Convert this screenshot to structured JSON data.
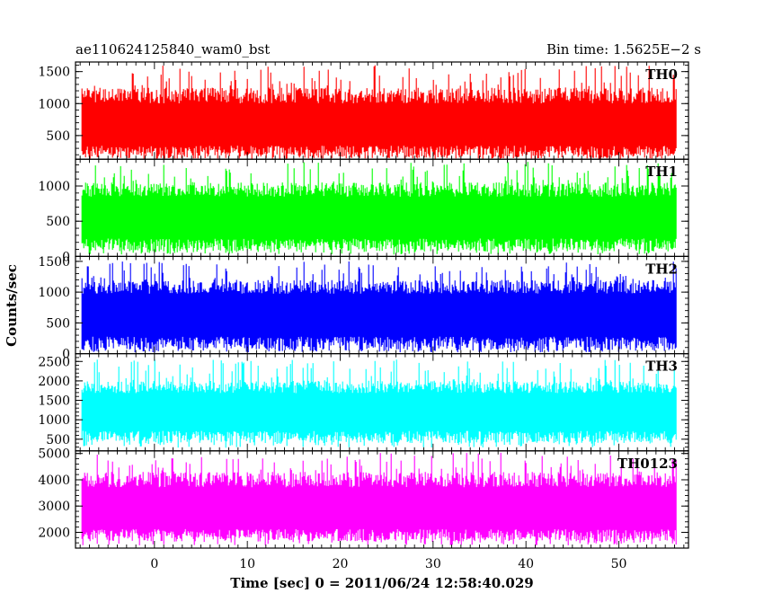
{
  "chart_data": {
    "type": "line",
    "title_left": "ae110624125840_wam0_bst",
    "title_right": "Bin time: 1.5625E−2 s",
    "xlabel": "Time [sec] 0 = 2011/06/24 12:58:40.029",
    "ylabel": "Counts/sec",
    "xlim": [
      -8.5,
      57.5
    ],
    "data_xrange": [
      -7.8,
      56.2
    ],
    "x_ticks": [
      0,
      10,
      20,
      30,
      40,
      50
    ],
    "grid": false,
    "panels": [
      {
        "name": "TH0",
        "color": "#ff0000",
        "ylim": [
          130,
          1650
        ],
        "y_ticks": [
          500,
          1000,
          1500
        ],
        "baseline": 150,
        "mean": 700,
        "top_typ": 1250,
        "top_max": 1600
      },
      {
        "name": "TH1",
        "color": "#00ff00",
        "ylim": [
          0,
          1380
        ],
        "y_ticks": [
          0,
          500,
          1000
        ],
        "baseline": 70,
        "mean": 600,
        "top_typ": 1050,
        "top_max": 1350
      },
      {
        "name": "TH2",
        "color": "#0000ff",
        "ylim": [
          0,
          1580
        ],
        "y_ticks": [
          0,
          500,
          1000,
          1500
        ],
        "baseline": 50,
        "mean": 700,
        "top_typ": 1200,
        "top_max": 1500
      },
      {
        "name": "TH3",
        "color": "#00ffff",
        "ylim": [
          200,
          2700
        ],
        "y_ticks": [
          500,
          1000,
          1500,
          2000,
          2500
        ],
        "baseline": 400,
        "mean": 1300,
        "top_typ": 2000,
        "top_max": 2550
      },
      {
        "name": "TH0123",
        "color": "#ff00ff",
        "ylim": [
          1400,
          5100
        ],
        "y_ticks": [
          2000,
          3000,
          4000,
          5000
        ],
        "baseline": 1650,
        "mean": 3000,
        "top_typ": 4300,
        "top_max": 5050
      }
    ]
  }
}
